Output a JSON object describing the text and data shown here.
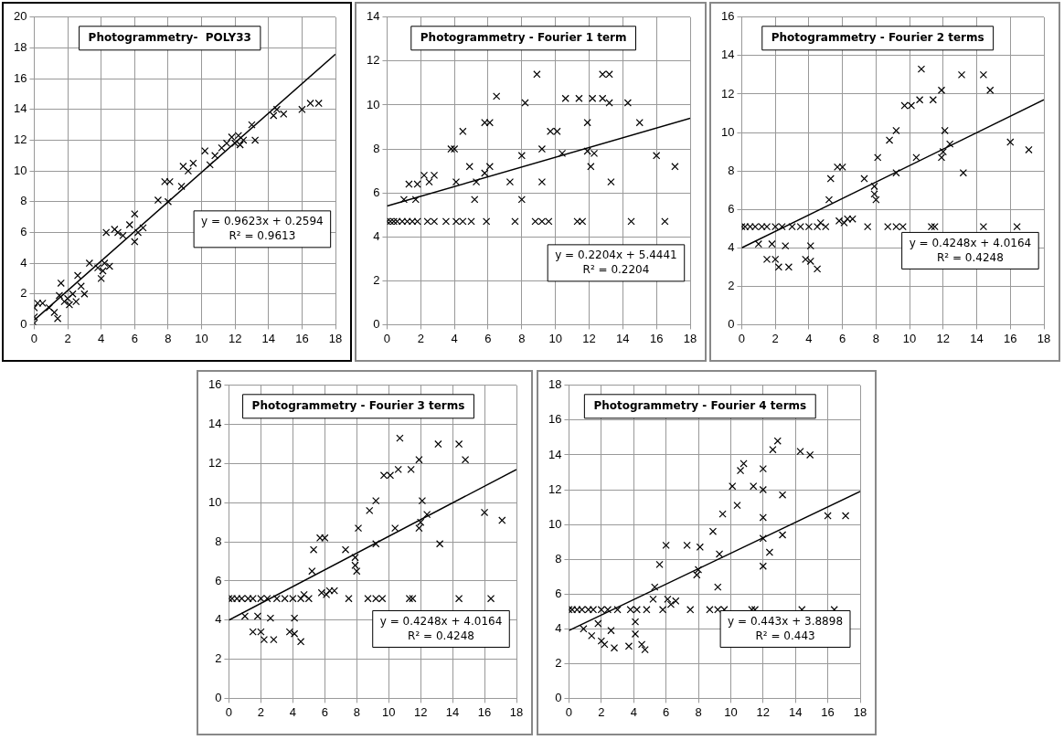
{
  "chart_data": [
    {
      "type": "scatter",
      "title": "Photogrammetry-  POLY33",
      "xlim": [
        0,
        18
      ],
      "xticks": [
        0,
        2,
        4,
        6,
        8,
        10,
        12,
        14,
        16,
        18
      ],
      "ylim": [
        0,
        20
      ],
      "yticks": [
        0,
        2,
        4,
        6,
        8,
        10,
        12,
        14,
        16,
        18,
        20
      ],
      "grid": true,
      "marker": "cross",
      "annotations": [
        "y = 0.9623x + 0.2594",
        "R² = 0.9613"
      ],
      "series": [
        {
          "type": "scatter",
          "color": "#000000",
          "x": [
            0,
            0,
            0,
            0.2,
            0.5,
            0.9,
            1.2,
            1.4,
            1.5,
            1.6,
            1.8,
            2,
            2.1,
            2.3,
            2.5,
            2.6,
            2.8,
            3,
            3.3,
            3.8,
            4,
            4.1,
            4.2,
            4.5,
            4.3,
            4.8,
            5,
            5.3,
            5.7,
            6,
            6,
            6.2,
            6.5,
            7.4,
            7.8,
            8,
            8.1,
            8.8,
            8.9,
            9.2,
            9.5,
            10.2,
            10.5,
            10.8,
            11.2,
            11.5,
            11.8,
            12,
            12.2,
            12.3,
            12.5,
            13,
            13.2,
            14.3,
            14.5,
            14.9,
            16,
            16.5,
            17
          ],
          "values": [
            0.1,
            0.5,
            1.1,
            1.4,
            1.4,
            1.1,
            0.8,
            0.4,
            1.9,
            2.7,
            1.5,
            1.7,
            1.3,
            2,
            1.5,
            3.2,
            2.5,
            2,
            4,
            3.7,
            3,
            3.5,
            4,
            3.8,
            6,
            6.2,
            6,
            5.8,
            6.5,
            5.4,
            7.2,
            6,
            6.3,
            8.1,
            9.3,
            8,
            9.3,
            9,
            10.3,
            10,
            10.5,
            11.3,
            10.4,
            11,
            11.5,
            11.8,
            12.2,
            11.8,
            12.3,
            11.7,
            12,
            13,
            12,
            13.6,
            14,
            13.7,
            14,
            14.4,
            14.4
          ]
        },
        {
          "type": "line",
          "color": "#000000",
          "marker": "none",
          "x": [
            0,
            18
          ],
          "values": [
            0.3,
            17.6
          ]
        }
      ]
    },
    {
      "type": "scatter",
      "title": "Photogrammetry - Fourier 1 term",
      "xlim": [
        0,
        18
      ],
      "xticks": [
        0,
        2,
        4,
        6,
        8,
        10,
        12,
        14,
        16,
        18
      ],
      "ylim": [
        0,
        14
      ],
      "yticks": [
        0,
        2,
        4,
        6,
        8,
        10,
        12,
        14
      ],
      "grid": true,
      "marker": "cross",
      "annotations": [
        "y = 0.2204x + 5.4441",
        "R² = 0.2204"
      ],
      "series": [
        {
          "type": "scatter",
          "color": "#000000",
          "x": [
            0,
            0.2,
            0.4,
            0.6,
            0.9,
            1.2,
            1.5,
            1.8,
            2.4,
            2.8,
            3.5,
            4.1,
            4.5,
            5,
            5.9,
            7.6,
            8.8,
            9.2,
            9.6,
            11.3,
            11.6,
            14.5,
            16.5,
            1,
            1.7,
            1.3,
            1.8,
            2.2,
            2.5,
            2.8,
            3.8,
            4,
            4.1,
            4.5,
            4.9,
            5.2,
            5.3,
            5.8,
            5.8,
            6.1,
            6.1,
            6.5,
            7.3,
            8,
            8,
            8.2,
            8.9,
            9.2,
            9.2,
            9.7,
            10.1,
            10.4,
            10.6,
            11.4,
            11.9,
            11.9,
            12.1,
            12.2,
            12.3,
            12.8,
            12.8,
            13.2,
            13.2,
            13.3,
            14.3,
            15,
            16,
            17.1
          ],
          "values": [
            4.7,
            4.7,
            4.7,
            4.7,
            4.7,
            4.7,
            4.7,
            4.7,
            4.7,
            4.7,
            4.7,
            4.7,
            4.7,
            4.7,
            4.7,
            4.7,
            4.7,
            4.7,
            4.7,
            4.7,
            4.7,
            4.7,
            4.7,
            5.7,
            5.7,
            6.4,
            6.4,
            6.8,
            6.5,
            6.8,
            8,
            8,
            6.5,
            8.8,
            7.2,
            5.7,
            6.5,
            6.9,
            9.2,
            9.2,
            7.2,
            10.4,
            6.5,
            7.7,
            5.7,
            10.1,
            11.4,
            8,
            6.5,
            8.8,
            8.8,
            7.8,
            10.3,
            10.3,
            9.2,
            7.9,
            7.2,
            10.3,
            7.8,
            10.3,
            11.4,
            11.4,
            10.1,
            6.5,
            10.1,
            9.2,
            7.7,
            7.2
          ]
        },
        {
          "type": "line",
          "color": "#000000",
          "marker": "none",
          "x": [
            0,
            18
          ],
          "values": [
            5.4,
            9.4
          ]
        }
      ]
    },
    {
      "type": "scatter",
      "title": "Photogrammetry - Fourier 2 terms",
      "xlim": [
        0,
        18
      ],
      "xticks": [
        0,
        2,
        4,
        6,
        8,
        10,
        12,
        14,
        16,
        18
      ],
      "ylim": [
        0,
        16
      ],
      "yticks": [
        0,
        2,
        4,
        6,
        8,
        10,
        12,
        14,
        16
      ],
      "grid": true,
      "marker": "cross",
      "annotations": [
        "y = 0.4248x + 4.0164",
        "R² = 0.4248"
      ],
      "series": [
        {
          "type": "scatter",
          "color": "#000000",
          "x": [
            0,
            0.2,
            0.5,
            0.8,
            1.2,
            1.5,
            2,
            2.4,
            3,
            3.5,
            4,
            4.5,
            5,
            7.5,
            8.7,
            9.2,
            9.6,
            11.3,
            11.5,
            14.4,
            16.4,
            1,
            1.5,
            1.8,
            2,
            2.2,
            2.6,
            2.8,
            3.8,
            4.1,
            4.1,
            4.5,
            4.7,
            5.2,
            5.3,
            5.7,
            6,
            5.8,
            6.1,
            6.3,
            6.6,
            7.3,
            7.9,
            7.9,
            8,
            8.1,
            8.8,
            9.2,
            9.2,
            9.7,
            10.1,
            10.4,
            10.6,
            10.7,
            11.4,
            11.9,
            11.9,
            12,
            12.1,
            12.4,
            13.1,
            13.2,
            14.4,
            14.8,
            16,
            17.1
          ],
          "values": [
            5.1,
            5.1,
            5.1,
            5.1,
            5.1,
            5.1,
            5.1,
            5.1,
            5.1,
            5.1,
            5.1,
            5.1,
            5.1,
            5.1,
            5.1,
            5.1,
            5.1,
            5.1,
            5.1,
            5.1,
            5.1,
            4.2,
            3.4,
            4.2,
            3.4,
            3,
            4.1,
            3,
            3.4,
            4.1,
            3.3,
            2.9,
            5.3,
            6.5,
            7.6,
            8.2,
            8.2,
            5.4,
            5.3,
            5.5,
            5.5,
            7.6,
            7.2,
            6.8,
            6.5,
            8.7,
            9.6,
            10.1,
            7.9,
            11.4,
            11.4,
            8.7,
            11.7,
            13.3,
            11.7,
            12.2,
            8.7,
            9,
            10.1,
            9.4,
            13,
            7.9,
            13,
            12.2,
            9.5,
            9.1
          ]
        },
        {
          "type": "line",
          "color": "#000000",
          "marker": "none",
          "x": [
            0,
            18
          ],
          "values": [
            4.0,
            11.7
          ]
        }
      ]
    },
    {
      "type": "scatter",
      "title": "Photogrammetry - Fourier 3 terms",
      "xlim": [
        0,
        18
      ],
      "xticks": [
        0,
        2,
        4,
        6,
        8,
        10,
        12,
        14,
        16,
        18
      ],
      "ylim": [
        0,
        16
      ],
      "yticks": [
        0,
        2,
        4,
        6,
        8,
        10,
        12,
        14,
        16
      ],
      "grid": true,
      "marker": "cross",
      "annotations": [
        "y = 0.4248x + 4.0164",
        "R² = 0.4248"
      ],
      "series": [
        {
          "type": "scatter",
          "color": "#000000",
          "x": [
            0,
            0.2,
            0.5,
            0.8,
            1.2,
            1.5,
            2,
            2.4,
            3,
            3.5,
            4,
            4.5,
            5,
            7.5,
            8.7,
            9.2,
            9.6,
            11.3,
            11.5,
            14.4,
            16.4,
            1,
            1.5,
            1.8,
            2,
            2.2,
            2.6,
            2.8,
            3.8,
            4.1,
            4.1,
            4.5,
            4.7,
            5.2,
            5.3,
            5.7,
            6,
            5.8,
            6.1,
            6.3,
            6.6,
            7.3,
            7.9,
            7.9,
            8,
            8.1,
            8.8,
            9.2,
            9.2,
            9.7,
            10.1,
            10.4,
            10.6,
            10.7,
            11.4,
            11.9,
            11.9,
            12,
            12.1,
            12.4,
            13.1,
            13.2,
            14.4,
            14.8,
            16,
            17.1
          ],
          "values": [
            5.1,
            5.1,
            5.1,
            5.1,
            5.1,
            5.1,
            5.1,
            5.1,
            5.1,
            5.1,
            5.1,
            5.1,
            5.1,
            5.1,
            5.1,
            5.1,
            5.1,
            5.1,
            5.1,
            5.1,
            5.1,
            4.2,
            3.4,
            4.2,
            3.4,
            3,
            4.1,
            3,
            3.4,
            4.1,
            3.3,
            2.9,
            5.3,
            6.5,
            7.6,
            8.2,
            8.2,
            5.4,
            5.3,
            5.5,
            5.5,
            7.6,
            7.2,
            6.8,
            6.5,
            8.7,
            9.6,
            10.1,
            7.9,
            11.4,
            11.4,
            8.7,
            11.7,
            13.3,
            11.7,
            12.2,
            8.7,
            9,
            10.1,
            9.4,
            13,
            7.9,
            13,
            12.2,
            9.5,
            9.1
          ]
        },
        {
          "type": "line",
          "color": "#000000",
          "marker": "none",
          "x": [
            0,
            18
          ],
          "values": [
            4.0,
            11.7
          ]
        }
      ]
    },
    {
      "type": "scatter",
      "title": "Photogrammetry - Fourier 4 terms",
      "xlim": [
        0,
        18
      ],
      "xticks": [
        0,
        2,
        4,
        6,
        8,
        10,
        12,
        14,
        16,
        18
      ],
      "ylim": [
        0,
        18
      ],
      "yticks": [
        0,
        2,
        4,
        6,
        8,
        10,
        12,
        14,
        16,
        18
      ],
      "grid": true,
      "marker": "cross",
      "annotations": [
        "y = 0.443x + 3.8898",
        "R² = 0.443"
      ],
      "series": [
        {
          "type": "scatter",
          "color": "#000000",
          "x": [
            0,
            0.2,
            0.5,
            0.8,
            1.2,
            1.5,
            2,
            2.4,
            3,
            3.8,
            4.2,
            4.8,
            5.8,
            7.5,
            8.7,
            9.2,
            9.6,
            11.3,
            11.5,
            14.4,
            16.4,
            0.9,
            1.4,
            1.8,
            2,
            2.2,
            2.6,
            2.8,
            3.7,
            4.1,
            4.1,
            4.5,
            4.7,
            5.2,
            5.3,
            5.6,
            6,
            6.1,
            6.3,
            6.6,
            7.3,
            7.9,
            8,
            8.1,
            8.9,
            9.2,
            9.3,
            9.5,
            10.1,
            10.4,
            10.6,
            10.8,
            11.4,
            12,
            12,
            12,
            12,
            12,
            12.4,
            12.6,
            12.9,
            13.2,
            13.2,
            14.3,
            14.9,
            16,
            17.1
          ],
          "values": [
            5.1,
            5.1,
            5.1,
            5.1,
            5.1,
            5.1,
            5.1,
            5.1,
            5.1,
            5.1,
            5.1,
            5.1,
            5.1,
            5.1,
            5.1,
            5.1,
            5.1,
            5.1,
            5.1,
            5.1,
            5.1,
            4,
            3.6,
            4.3,
            3.3,
            3.1,
            3.9,
            2.9,
            3,
            4.4,
            3.7,
            3.1,
            2.8,
            5.7,
            6.4,
            7.7,
            8.8,
            5.7,
            5.4,
            5.6,
            8.8,
            7.1,
            7.4,
            8.7,
            9.6,
            6.4,
            8.3,
            10.6,
            12.2,
            11.1,
            13.1,
            13.5,
            12.2,
            13.2,
            12,
            10.4,
            9.2,
            7.6,
            8.4,
            14.3,
            14.8,
            11.7,
            9.4,
            14.2,
            14,
            10.5,
            10.5
          ]
        },
        {
          "type": "line",
          "color": "#000000",
          "marker": "none",
          "x": [
            0,
            18
          ],
          "values": [
            3.9,
            11.9
          ]
        }
      ]
    }
  ]
}
